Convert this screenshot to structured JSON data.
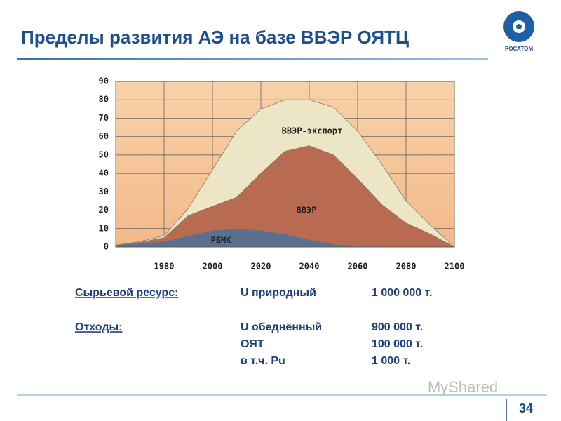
{
  "header": {
    "title": "Пределы развития АЭ на базе ВВЭР ОЯТЦ",
    "logo_text": "РОСАТОМ"
  },
  "chart_data": {
    "type": "stacked-area",
    "x": [
      1960,
      1970,
      1980,
      1990,
      2000,
      2010,
      2020,
      2030,
      2040,
      2050,
      2060,
      2070,
      2080,
      2090,
      2100
    ],
    "series": [
      {
        "name": "РБМК",
        "color": "#5c6f8e",
        "values": [
          1,
          2,
          3,
          6,
          9,
          10,
          9,
          7,
          4,
          1.5,
          0.5,
          0,
          0,
          0,
          0
        ]
      },
      {
        "name": "ВВЭР",
        "color": "#b96b52",
        "values": [
          0,
          0.5,
          2,
          11,
          13,
          17,
          31,
          45,
          51,
          48.5,
          36.5,
          23,
          13,
          7,
          0
        ]
      },
      {
        "name": "ВВЭР-экспорт",
        "color": "#ece5c6",
        "values": [
          0,
          0.5,
          1,
          4,
          20,
          36,
          35,
          28,
          25,
          26,
          26,
          22,
          12,
          5,
          0
        ]
      }
    ],
    "xlim": [
      1960,
      2100
    ],
    "xticks": [
      1980,
      2000,
      2020,
      2040,
      2060,
      2080,
      2100
    ],
    "ylim": [
      0,
      90
    ],
    "yticks": [
      0,
      10,
      20,
      30,
      40,
      50,
      60,
      70,
      80,
      90
    ],
    "grid": true
  },
  "table": {
    "groups": [
      {
        "label": "Сырьевой ресурс:",
        "items": [
          [
            "U природный",
            "1 000 000 т."
          ]
        ]
      },
      {
        "label": "Отходы:",
        "items": [
          [
            "U обеднённый",
            "900 000 т."
          ],
          [
            "ОЯТ",
            "100 000 т."
          ],
          [
            "в т.ч. Pu",
            "1 000 т."
          ]
        ]
      }
    ]
  },
  "footer": {
    "watermark": "MyShared",
    "page_number": "34"
  }
}
